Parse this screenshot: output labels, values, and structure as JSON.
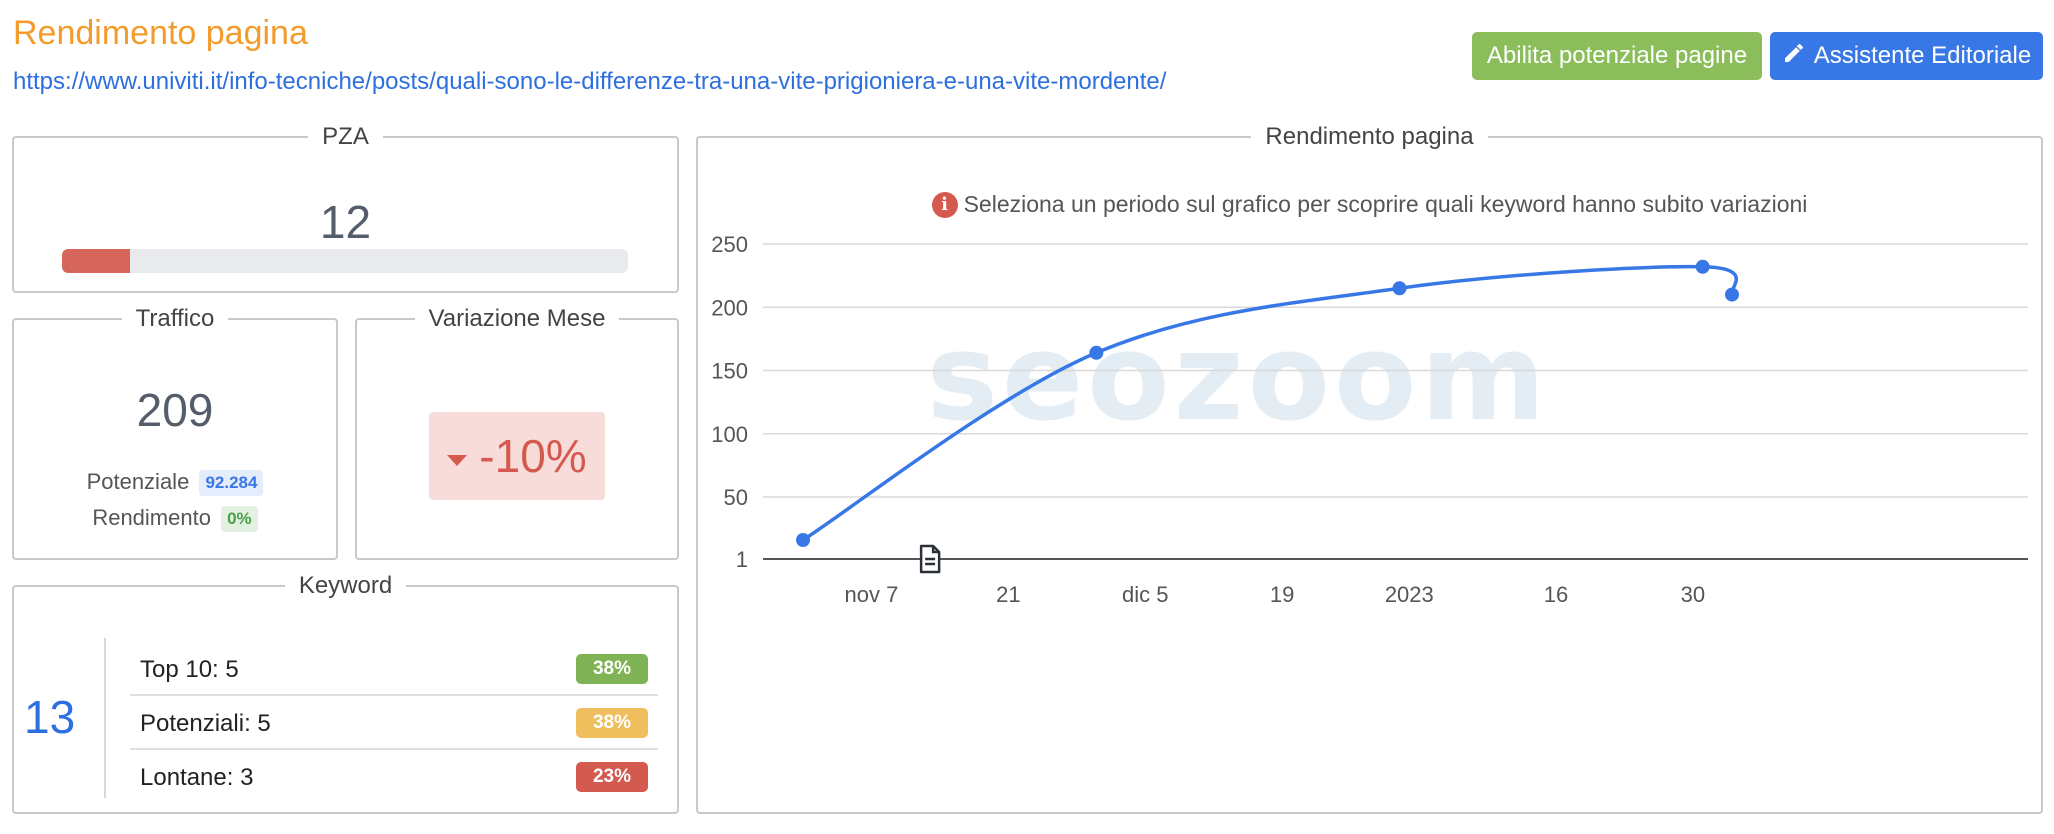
{
  "header": {
    "title": "Rendimento pagina",
    "url": "https://www.univiti.it/info-tecniche/posts/quali-sono-le-differenze-tra-una-vite-prigioniera-e-una-vite-mordente/",
    "btn_potenziale": "Abilita potenziale pagine",
    "btn_assistente": "Assistente Editoriale"
  },
  "pza": {
    "title": "PZA",
    "value": "12",
    "progress": 0.12,
    "bar_color": "#d6665b"
  },
  "traffico": {
    "title": "Traffico",
    "value": "209",
    "potenziale_label": "Potenziale",
    "potenziale_value": "92.284",
    "rendimento_label": "Rendimento",
    "rendimento_value": "0%"
  },
  "variazione": {
    "title": "Variazione Mese",
    "value": "-10%",
    "direction": "down",
    "color": "#d45a4f"
  },
  "keyword": {
    "title": "Keyword",
    "total": "13",
    "rows": [
      {
        "label": "Top 10: 5",
        "percent": "38%",
        "color": "#7fb356"
      },
      {
        "label": "Potenziali: 5",
        "percent": "38%",
        "color": "#efbf5e"
      },
      {
        "label": "Lontane: 3",
        "percent": "23%",
        "color": "#d45a4f"
      }
    ]
  },
  "chart": {
    "panel_title": "Rendimento pagina",
    "info_text": "Seleziona un periodo sul grafico per scoprire quali keyword hanno subito variazioni",
    "watermark": "seozoom"
  },
  "chart_data": {
    "type": "line",
    "title": "",
    "xlabel": "",
    "ylabel": "",
    "line_color": "#3778e6",
    "ylim": [
      1,
      250
    ],
    "y_ticks": [
      1,
      50,
      100,
      150,
      200,
      250
    ],
    "x_tick_labels": [
      "nov 7",
      "21",
      "dic 5",
      "19",
      "2023",
      "16",
      "30"
    ],
    "points": [
      {
        "x": "2022-10-31",
        "y": 16
      },
      {
        "x": "2022-11-30",
        "y": 164
      },
      {
        "x": "2022-12-31",
        "y": 215
      },
      {
        "x": "2023-01-31",
        "y": 232
      },
      {
        "x": "2023-02-03",
        "y": 210
      }
    ],
    "annotations": [
      {
        "x": "2022-11-13",
        "icon": "document-icon"
      }
    ],
    "grid": true
  }
}
